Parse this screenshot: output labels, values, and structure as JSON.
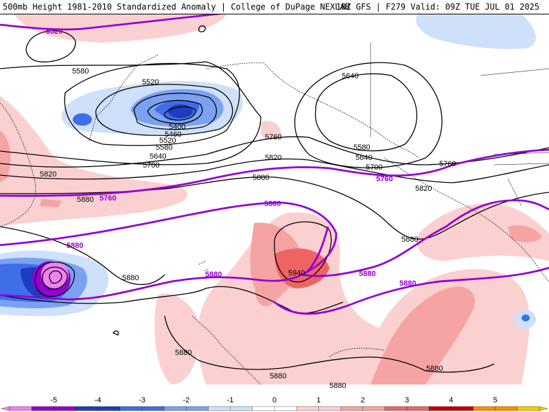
{
  "header": {
    "left_title": "500mb Height 1981-2010 Standardized Anomaly | College of DuPage NEXLAB",
    "right_title": "18Z GFS | F279 Valid: 09Z TUE JUL 01 2025"
  },
  "colors": {
    "anomaly_scale": [
      "#ee82ee",
      "#9400d3",
      "#1e3cbf",
      "#3f6ee8",
      "#7aa2f0",
      "#cfe0fb",
      "#ffffff",
      "#fbd0d0",
      "#f6a3a3",
      "#ee6464",
      "#c40000",
      "#ff8c00",
      "#ffc800"
    ],
    "contour_color": "#000000",
    "highlight_contour_color": "#9400d3"
  },
  "contour_labels": {
    "black": [
      "5580",
      "5520",
      "5400",
      "5460",
      "5520",
      "5580",
      "5640",
      "5700",
      "5820",
      "5880",
      "5760",
      "5820",
      "5880",
      "5640",
      "5580",
      "5640",
      "5700",
      "5760",
      "5820",
      "5880",
      "5940",
      "5880",
      "5880",
      "5880",
      "5880",
      "5880"
    ],
    "purple": [
      "5520",
      "5760",
      "5760",
      "5880",
      "5880",
      "5880",
      "5880",
      "5880"
    ]
  },
  "colorbar": {
    "ticks": [
      "-5",
      "-4",
      "-3",
      "-2",
      "-1",
      "0",
      "1",
      "2",
      "3",
      "4",
      "5"
    ]
  }
}
